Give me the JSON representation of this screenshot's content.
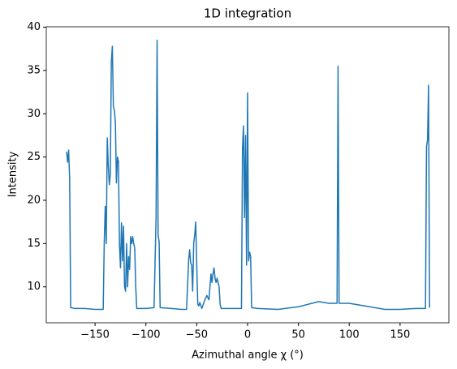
{
  "chart_data": {
    "type": "line",
    "title": "1D integration",
    "xlabel": "Azimuthal angle χ (°)",
    "ylabel": "Intensity",
    "color": "#1f77b4",
    "x": [
      -178,
      -177,
      -176,
      -175,
      -174,
      -170,
      -160,
      -150,
      -142,
      -141,
      -140,
      -139,
      -138,
      -137,
      -136,
      -135,
      -134,
      -133,
      -132,
      -131,
      -130,
      -129,
      -128,
      -127,
      -126,
      -125,
      -124,
      -123,
      -122,
      -121,
      -120,
      -119,
      -118,
      -117,
      -116,
      -115,
      -114,
      -113,
      -112,
      -111,
      -110,
      -109,
      -100,
      -92,
      -90,
      -89,
      -88,
      -87,
      -86,
      -75,
      -65,
      -60,
      -58,
      -57,
      -56,
      -55,
      -54,
      -53,
      -52,
      -51,
      -50,
      -49,
      -48,
      -47,
      -45,
      -42,
      -40,
      -38,
      -36,
      -35,
      -34,
      -33,
      -32,
      -31,
      -30,
      -28,
      -27,
      -26,
      -10,
      -6,
      -5,
      -4,
      -3,
      -2,
      -1,
      0,
      1,
      2,
      3,
      4,
      10,
      30,
      50,
      60,
      70,
      80,
      88,
      89,
      90,
      100,
      110,
      120,
      135,
      150,
      165,
      175,
      176,
      177,
      178,
      179
    ],
    "values": [
      25.6,
      24.4,
      25.8,
      22.5,
      7.6,
      7.5,
      7.5,
      7.4,
      7.4,
      15,
      19.3,
      15,
      27.2,
      24,
      21.8,
      23,
      36,
      37.8,
      30.8,
      30.4,
      29,
      22,
      25,
      24.5,
      15,
      12.2,
      17.4,
      13,
      17,
      10,
      9.5,
      15,
      10,
      13.5,
      12,
      15.8,
      15,
      15.8,
      15,
      14.5,
      10,
      7.5,
      7.5,
      7.6,
      18,
      38.5,
      16,
      15.2,
      7.6,
      7.5,
      7.4,
      7.4,
      13,
      14.3,
      12.8,
      12.5,
      9.5,
      15,
      16,
      17.5,
      12.5,
      8,
      7.8,
      8.2,
      7.5,
      8.5,
      9,
      8.5,
      11.5,
      10.5,
      11.5,
      12.2,
      11,
      10.5,
      11,
      10,
      8,
      7.5,
      7.5,
      7.5,
      26,
      28.6,
      18,
      27.5,
      12.5,
      32.4,
      13,
      14,
      13.5,
      7.6,
      7.5,
      7.4,
      7.7,
      8,
      8.3,
      8.1,
      8.1,
      35.5,
      8.1,
      8.1,
      7.9,
      7.7,
      7.4,
      7.4,
      7.5,
      7.5,
      26.2,
      27,
      33.3,
      7.6
    ],
    "xlim": [
      -198,
      198
    ],
    "ylim": [
      5.85,
      40.05
    ],
    "xticks": [
      {
        "value": -150,
        "label": "−150"
      },
      {
        "value": -100,
        "label": "−100"
      },
      {
        "value": -50,
        "label": "−50"
      },
      0,
      50,
      100,
      150
    ],
    "yticks": [
      10,
      15,
      20,
      25,
      30,
      35,
      40
    ]
  }
}
